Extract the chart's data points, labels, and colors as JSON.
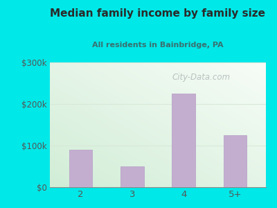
{
  "title": "Median family income by family size",
  "subtitle": "All residents in Bainbridge, PA",
  "categories": [
    "2",
    "3",
    "4",
    "5+"
  ],
  "values": [
    90000,
    50000,
    225000,
    125000
  ],
  "bar_color": "#c4aed0",
  "bar_edge_color": "#b8a2c8",
  "ylim": [
    0,
    300000
  ],
  "yticks": [
    0,
    100000,
    200000,
    300000
  ],
  "ytick_labels": [
    "$0",
    "$100k",
    "$200k",
    "$300k"
  ],
  "outer_bg": "#00e8e8",
  "title_color": "#2a2a2a",
  "subtitle_color": "#3a7070",
  "tick_color": "#555555",
  "watermark_text": "City-Data.com",
  "watermark_color": "#b0b8b8",
  "grid_color": "#d8e8d8"
}
